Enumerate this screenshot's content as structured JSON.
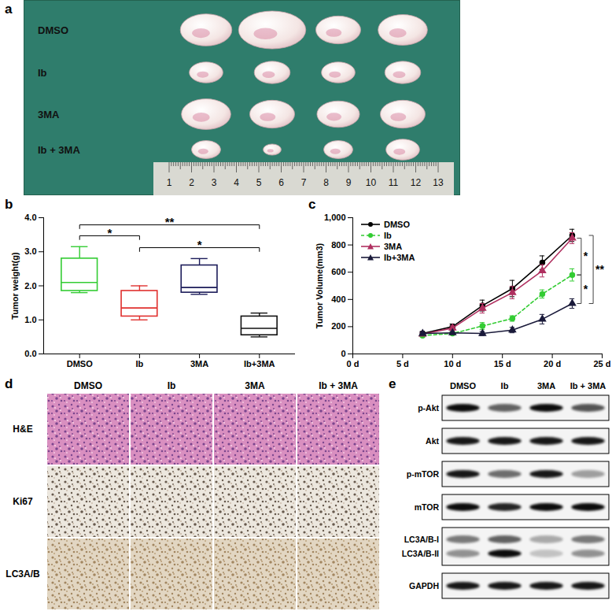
{
  "panels": [
    "a",
    "b",
    "c",
    "d",
    "e"
  ],
  "tumor_photo": {
    "groups": [
      "DMSO",
      "Ib",
      "3MA",
      "Ib + 3MA"
    ],
    "tumor_widths_cm": [
      [
        2.3,
        3.0,
        2.0,
        2.2
      ],
      [
        1.5,
        1.6,
        1.5,
        1.6
      ],
      [
        2.2,
        2.0,
        1.9,
        2.0
      ],
      [
        1.3,
        0.8,
        1.3,
        1.5
      ]
    ],
    "ruler_ticks": [
      1,
      2,
      3,
      4,
      5,
      6,
      7,
      8,
      9,
      10,
      11,
      12,
      13
    ]
  },
  "chart_data": [
    {
      "type": "box",
      "ylabel": "Tumor weight(g)",
      "categories": [
        "DMSO",
        "Ib",
        "3MA",
        "Ib+3MA"
      ],
      "stats": {
        "min": [
          1.8,
          1.0,
          1.75,
          0.5
        ],
        "q1": [
          1.85,
          1.1,
          1.8,
          0.55
        ],
        "median": [
          2.1,
          1.35,
          1.95,
          0.75
        ],
        "q3": [
          2.8,
          1.85,
          2.6,
          1.1
        ],
        "max": [
          3.15,
          2.0,
          2.8,
          1.2
        ]
      },
      "colors": [
        "#33cc33",
        "#e0302e",
        "#1c1c5a",
        "#111111"
      ],
      "ylim": [
        0,
        4
      ],
      "yticks": [
        0,
        1,
        2,
        3,
        4
      ],
      "significance": [
        {
          "from": "DMSO",
          "to": "Ib",
          "label": "*"
        },
        {
          "from": "Ib",
          "to": "Ib+3MA",
          "label": "*"
        },
        {
          "from": "DMSO",
          "to": "Ib+3MA",
          "label": "**"
        }
      ]
    },
    {
      "type": "line",
      "ylabel": "Tumor Volume(mm3)",
      "x": [
        7,
        10,
        13,
        16,
        19,
        22
      ],
      "xlim": [
        0,
        25
      ],
      "xticks": [
        {
          "value": 0,
          "label": "0 d"
        },
        {
          "value": 5,
          "label": "5 d"
        },
        {
          "value": 10,
          "label": "10 d"
        },
        {
          "value": 15,
          "label": "15 d"
        },
        {
          "value": 20,
          "label": "20 d"
        },
        {
          "value": 25,
          "label": "25 d"
        }
      ],
      "ylim": [
        0,
        1000
      ],
      "yticks": [
        0,
        200,
        400,
        600,
        800,
        1000
      ],
      "legend": "top-left",
      "series": [
        {
          "name": "DMSO",
          "color": "#000000",
          "marker": "circle",
          "line_style": "solid",
          "values": [
            150,
            200,
            355,
            480,
            670,
            870
          ],
          "errors": [
            15,
            20,
            40,
            60,
            50,
            45
          ]
        },
        {
          "name": "Ib",
          "color": "#33cc33",
          "marker": "circle",
          "line_style": "dashed",
          "values": [
            135,
            150,
            205,
            260,
            440,
            580
          ],
          "errors": [
            10,
            10,
            25,
            20,
            30,
            45
          ]
        },
        {
          "name": "3MA",
          "color": "#b03060",
          "marker": "triangle",
          "line_style": "solid",
          "values": [
            145,
            190,
            335,
            450,
            610,
            850
          ],
          "errors": [
            10,
            15,
            35,
            45,
            45,
            40
          ]
        },
        {
          "name": "Ib+3MA",
          "color": "#1a1a3a",
          "marker": "triangle",
          "line_style": "solid",
          "values": [
            150,
            155,
            150,
            175,
            255,
            370
          ],
          "errors": [
            10,
            10,
            15,
            20,
            35,
            35
          ]
        }
      ],
      "significance": [
        {
          "from": "3MA",
          "to": "Ib",
          "label": "*"
        },
        {
          "from": "Ib",
          "to": "Ib+3MA",
          "label": "*"
        },
        {
          "from": "DMSO",
          "to": "Ib+3MA",
          "label": "**"
        }
      ]
    }
  ],
  "histology": {
    "columns": [
      "DMSO",
      "Ib",
      "3MA",
      "Ib + 3MA"
    ],
    "rows": [
      "H&E",
      "Ki67",
      "LC3A/B"
    ]
  },
  "western_blot": {
    "lanes": [
      "DMSO",
      "Ib",
      "3MA",
      "Ib + 3MA"
    ],
    "rows": [
      {
        "labels": [
          "p-Akt"
        ],
        "intensity": [
          [
            0.95,
            0.6,
            0.95,
            0.65
          ]
        ]
      },
      {
        "labels": [
          "Akt"
        ],
        "intensity": [
          [
            0.9,
            0.9,
            0.9,
            0.9
          ]
        ]
      },
      {
        "labels": [
          "p-mTOR"
        ],
        "intensity": [
          [
            0.9,
            0.55,
            0.9,
            0.35
          ]
        ]
      },
      {
        "labels": [
          "mTOR"
        ],
        "intensity": [
          [
            0.95,
            0.85,
            0.95,
            0.95
          ]
        ]
      },
      {
        "labels": [
          "LC3A/B-I",
          "LC3A/B-II"
        ],
        "intensity": [
          [
            0.5,
            0.6,
            0.3,
            0.5
          ],
          [
            0.4,
            0.95,
            0.2,
            0.4
          ]
        ]
      },
      {
        "labels": [
          "GAPDH"
        ],
        "intensity": [
          [
            0.9,
            0.9,
            0.9,
            0.9
          ]
        ]
      }
    ]
  }
}
